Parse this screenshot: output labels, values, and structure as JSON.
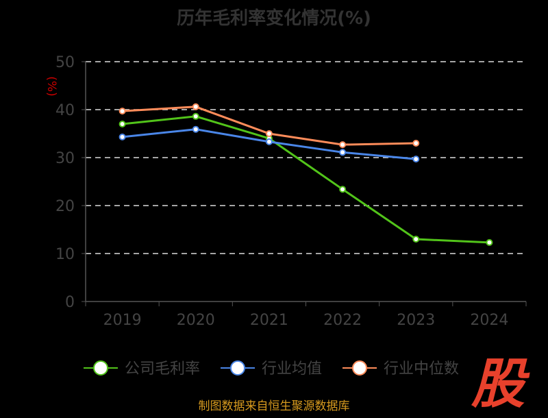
{
  "chart_data": {
    "type": "line",
    "title": "历年毛利率变化情况(%)",
    "ylabel": "(%)",
    "xlabel": "",
    "ylim": [
      0,
      50
    ],
    "yticks": [
      "0",
      "10",
      "20",
      "30",
      "40",
      "50"
    ],
    "categories": [
      "2019",
      "2020",
      "2021",
      "2022",
      "2023",
      "2024"
    ],
    "grid": true,
    "legend_position": "bottom",
    "series": [
      {
        "name": "公司毛利率",
        "color": "#52c41a",
        "values": [
          37.0,
          38.6,
          34.0,
          23.4,
          13.0,
          12.3
        ]
      },
      {
        "name": "行业均值",
        "color": "#4a86e8",
        "values": [
          34.3,
          35.9,
          33.3,
          31.1,
          29.7,
          null
        ]
      },
      {
        "name": "行业中位数",
        "color": "#ff8c5a",
        "values": [
          39.7,
          40.6,
          35.0,
          32.7,
          33.0,
          null
        ]
      }
    ]
  },
  "source": "制图数据来自恒生聚源数据库",
  "logo_text": "股"
}
